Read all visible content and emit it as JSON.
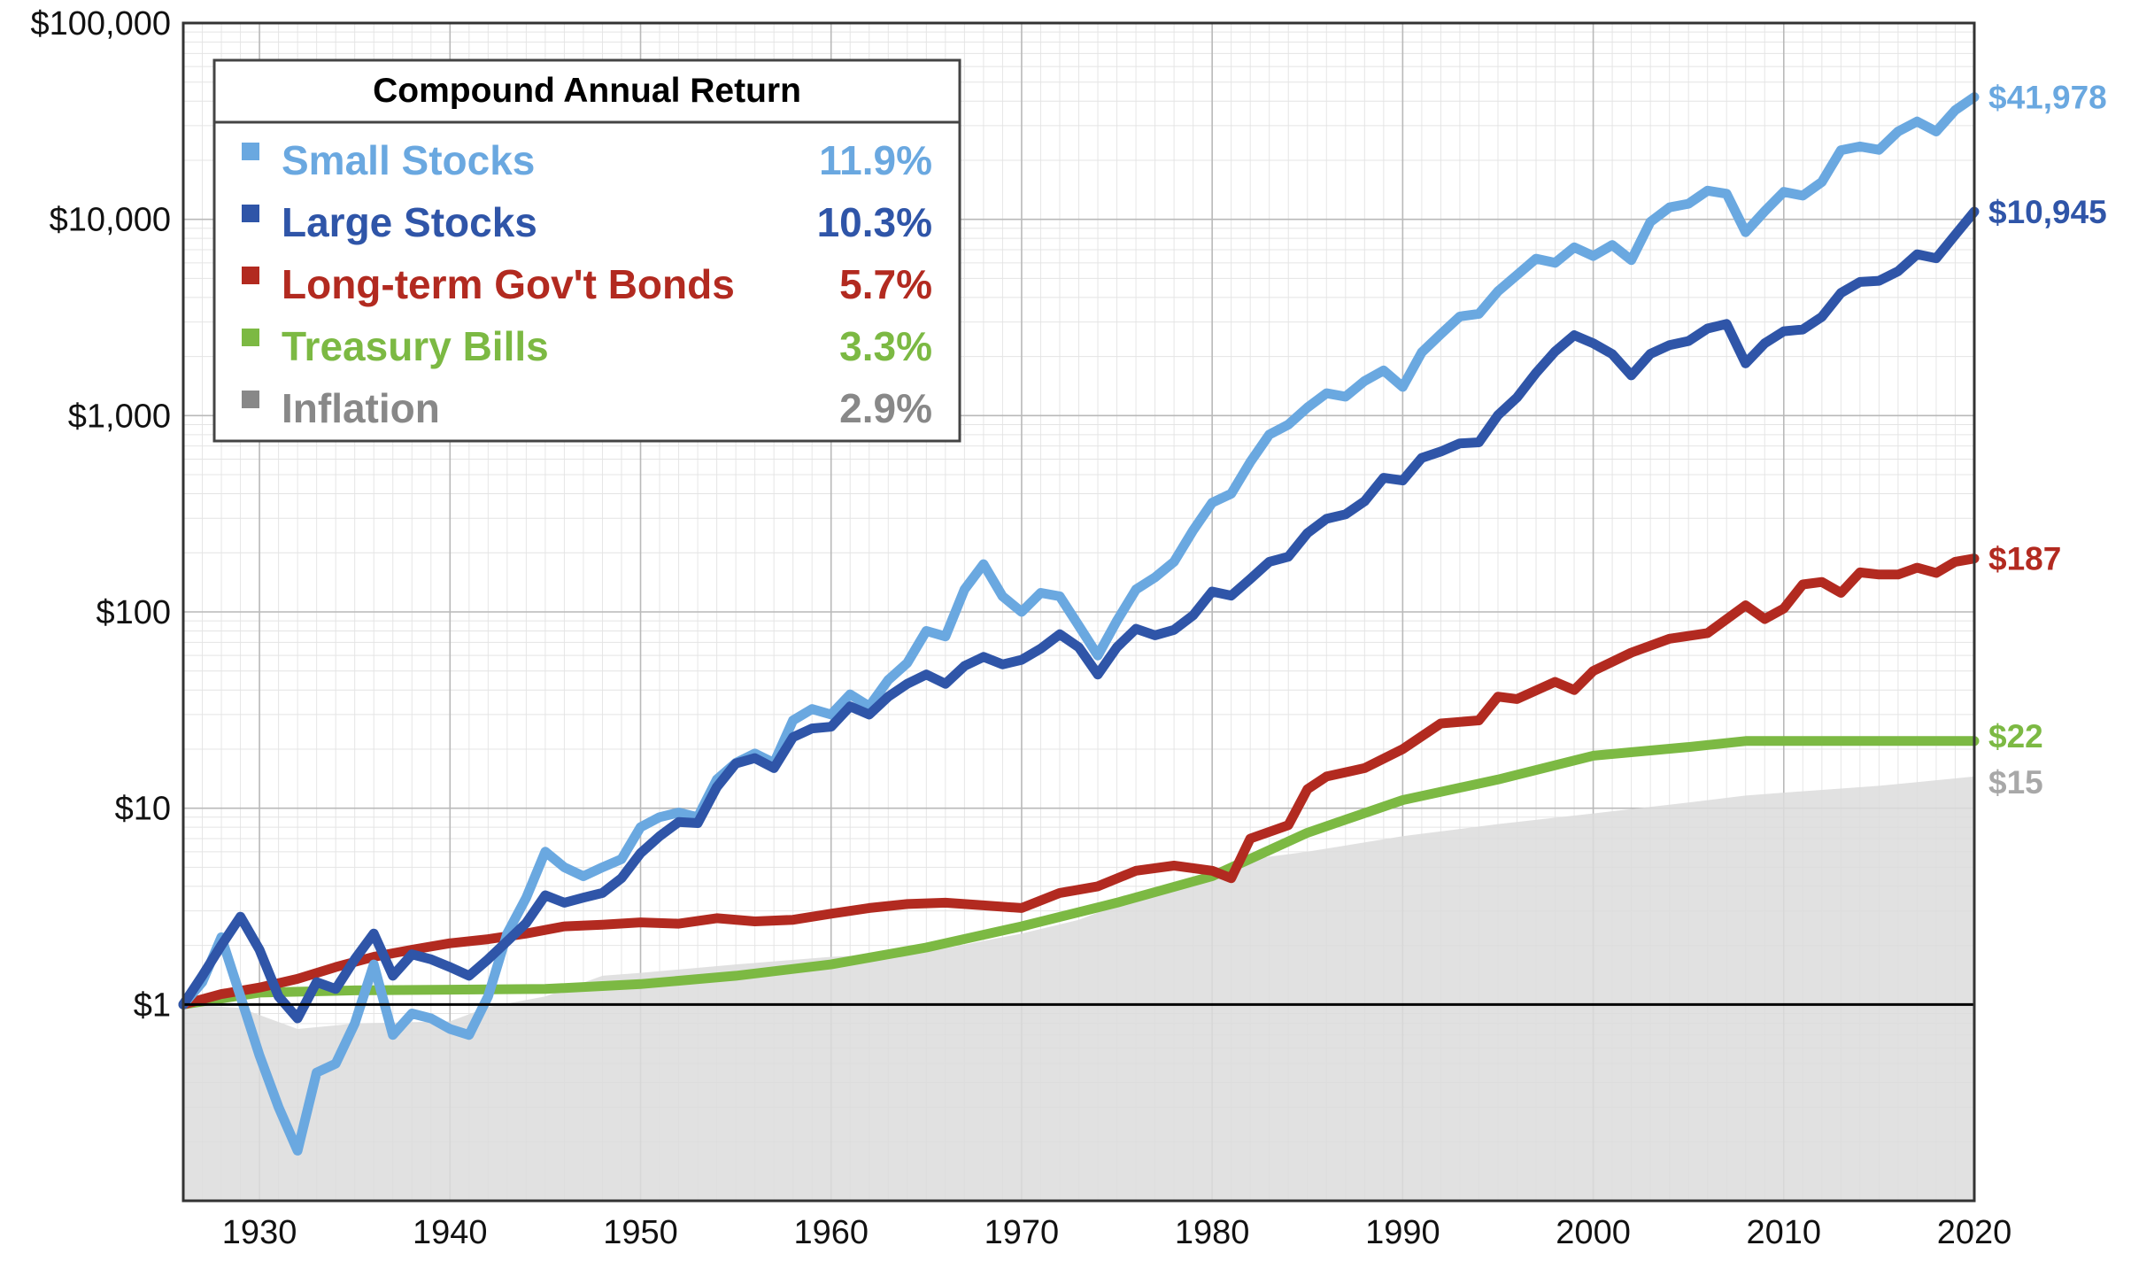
{
  "chart_data": {
    "type": "line",
    "title": "",
    "xlabel": "",
    "ylabel": "",
    "y_scale": "log",
    "xlim": [
      1926,
      2020
    ],
    "ylim": [
      0.1,
      100000
    ],
    "x_ticks": [
      1930,
      1940,
      1950,
      1960,
      1970,
      1980,
      1990,
      2000,
      2010,
      2020
    ],
    "x_tick_labels": [
      "1930",
      "1940",
      "1950",
      "1960",
      "1970",
      "1980",
      "1990",
      "2000",
      "2010",
      "2020"
    ],
    "y_ticks": [
      1,
      10,
      100,
      1000,
      10000,
      100000
    ],
    "y_tick_labels": [
      "$1",
      "$10",
      "$100",
      "$1,000",
      "$10,000",
      "$100,000"
    ],
    "grid": true,
    "legend": {
      "title": "Compound Annual Return",
      "placement": "top-left"
    },
    "series": [
      {
        "name": "Small Stocks",
        "rate": "11.9%",
        "end_label": "$41,978",
        "color": "#6aa8e0",
        "points": [
          [
            1926,
            1
          ],
          [
            1927,
            1.3
          ],
          [
            1928,
            2.2
          ],
          [
            1929,
            1.1
          ],
          [
            1930,
            0.55
          ],
          [
            1931,
            0.3
          ],
          [
            1932,
            0.18
          ],
          [
            1933,
            0.45
          ],
          [
            1934,
            0.5
          ],
          [
            1935,
            0.8
          ],
          [
            1936,
            1.6
          ],
          [
            1937,
            0.7
          ],
          [
            1938,
            0.9
          ],
          [
            1939,
            0.85
          ],
          [
            1940,
            0.75
          ],
          [
            1941,
            0.7
          ],
          [
            1942,
            1.1
          ],
          [
            1943,
            2.3
          ],
          [
            1944,
            3.5
          ],
          [
            1945,
            6
          ],
          [
            1946,
            5
          ],
          [
            1947,
            4.5
          ],
          [
            1948,
            5
          ],
          [
            1949,
            5.5
          ],
          [
            1950,
            8
          ],
          [
            1951,
            9
          ],
          [
            1952,
            9.5
          ],
          [
            1953,
            9
          ],
          [
            1954,
            14
          ],
          [
            1955,
            17
          ],
          [
            1956,
            19
          ],
          [
            1957,
            17
          ],
          [
            1958,
            28
          ],
          [
            1959,
            32
          ],
          [
            1960,
            30
          ],
          [
            1961,
            38
          ],
          [
            1962,
            33
          ],
          [
            1963,
            45
          ],
          [
            1964,
            55
          ],
          [
            1965,
            80
          ],
          [
            1966,
            75
          ],
          [
            1967,
            130
          ],
          [
            1968,
            175
          ],
          [
            1969,
            120
          ],
          [
            1970,
            100
          ],
          [
            1971,
            125
          ],
          [
            1972,
            120
          ],
          [
            1973,
            85
          ],
          [
            1974,
            60
          ],
          [
            1975,
            90
          ],
          [
            1976,
            130
          ],
          [
            1977,
            150
          ],
          [
            1978,
            180
          ],
          [
            1979,
            260
          ],
          [
            1980,
            360
          ],
          [
            1981,
            400
          ],
          [
            1982,
            580
          ],
          [
            1983,
            800
          ],
          [
            1984,
            900
          ],
          [
            1985,
            1100
          ],
          [
            1986,
            1300
          ],
          [
            1987,
            1250
          ],
          [
            1988,
            1500
          ],
          [
            1989,
            1700
          ],
          [
            1990,
            1400
          ],
          [
            1991,
            2100
          ],
          [
            1992,
            2600
          ],
          [
            1993,
            3200
          ],
          [
            1994,
            3300
          ],
          [
            1995,
            4300
          ],
          [
            1996,
            5200
          ],
          [
            1997,
            6300
          ],
          [
            1998,
            6000
          ],
          [
            1999,
            7200
          ],
          [
            2000,
            6500
          ],
          [
            2001,
            7400
          ],
          [
            2002,
            6200
          ],
          [
            2003,
            9700
          ],
          [
            2004,
            11500
          ],
          [
            2005,
            12000
          ],
          [
            2006,
            14000
          ],
          [
            2007,
            13500
          ],
          [
            2008,
            8600
          ],
          [
            2009,
            11000
          ],
          [
            2010,
            13800
          ],
          [
            2011,
            13200
          ],
          [
            2012,
            15500
          ],
          [
            2013,
            22500
          ],
          [
            2014,
            23500
          ],
          [
            2015,
            22600
          ],
          [
            2016,
            28000
          ],
          [
            2017,
            31500
          ],
          [
            2018,
            28000
          ],
          [
            2019,
            36000
          ],
          [
            2020,
            41978
          ]
        ]
      },
      {
        "name": "Large Stocks",
        "rate": "10.3%",
        "end_label": "$10,945",
        "color": "#2f55a8",
        "points": [
          [
            1926,
            1
          ],
          [
            1927,
            1.4
          ],
          [
            1928,
            2
          ],
          [
            1929,
            2.8
          ],
          [
            1930,
            1.9
          ],
          [
            1931,
            1.1
          ],
          [
            1932,
            0.85
          ],
          [
            1933,
            1.3
          ],
          [
            1934,
            1.2
          ],
          [
            1935,
            1.7
          ],
          [
            1936,
            2.3
          ],
          [
            1937,
            1.4
          ],
          [
            1938,
            1.8
          ],
          [
            1939,
            1.7
          ],
          [
            1940,
            1.55
          ],
          [
            1941,
            1.4
          ],
          [
            1942,
            1.7
          ],
          [
            1943,
            2.1
          ],
          [
            1944,
            2.6
          ],
          [
            1945,
            3.6
          ],
          [
            1946,
            3.3
          ],
          [
            1947,
            3.5
          ],
          [
            1948,
            3.7
          ],
          [
            1949,
            4.4
          ],
          [
            1950,
            5.9
          ],
          [
            1951,
            7.2
          ],
          [
            1952,
            8.5
          ],
          [
            1953,
            8.4
          ],
          [
            1954,
            12.8
          ],
          [
            1955,
            16.9
          ],
          [
            1956,
            18
          ],
          [
            1957,
            16
          ],
          [
            1958,
            23
          ],
          [
            1959,
            25.5
          ],
          [
            1960,
            26
          ],
          [
            1961,
            33
          ],
          [
            1962,
            30
          ],
          [
            1963,
            37
          ],
          [
            1964,
            43
          ],
          [
            1965,
            48
          ],
          [
            1966,
            43
          ],
          [
            1967,
            53
          ],
          [
            1968,
            59
          ],
          [
            1969,
            54
          ],
          [
            1970,
            57
          ],
          [
            1971,
            65
          ],
          [
            1972,
            77
          ],
          [
            1973,
            66
          ],
          [
            1974,
            48
          ],
          [
            1975,
            66
          ],
          [
            1976,
            82
          ],
          [
            1977,
            76
          ],
          [
            1978,
            81
          ],
          [
            1979,
            96
          ],
          [
            1980,
            127
          ],
          [
            1981,
            121
          ],
          [
            1982,
            147
          ],
          [
            1983,
            180
          ],
          [
            1984,
            191
          ],
          [
            1985,
            252
          ],
          [
            1986,
            298
          ],
          [
            1987,
            314
          ],
          [
            1988,
            366
          ],
          [
            1989,
            482
          ],
          [
            1990,
            467
          ],
          [
            1991,
            609
          ],
          [
            1992,
            656
          ],
          [
            1993,
            722
          ],
          [
            1994,
            731
          ],
          [
            1995,
            1006
          ],
          [
            1996,
            1237
          ],
          [
            1997,
            1650
          ],
          [
            1998,
            2122
          ],
          [
            1999,
            2569
          ],
          [
            2000,
            2335
          ],
          [
            2001,
            2057
          ],
          [
            2002,
            1603
          ],
          [
            2003,
            2063
          ],
          [
            2004,
            2287
          ],
          [
            2005,
            2400
          ],
          [
            2006,
            2778
          ],
          [
            2007,
            2931
          ],
          [
            2008,
            1847
          ],
          [
            2009,
            2336
          ],
          [
            2010,
            2688
          ],
          [
            2011,
            2745
          ],
          [
            2012,
            3185
          ],
          [
            2013,
            4217
          ],
          [
            2014,
            4794
          ],
          [
            2015,
            4860
          ],
          [
            2016,
            5441
          ],
          [
            2017,
            6629
          ],
          [
            2018,
            6338
          ],
          [
            2019,
            8334
          ],
          [
            2020,
            10945
          ]
        ]
      },
      {
        "name": "Long-term Gov't Bonds",
        "rate": "5.7%",
        "end_label": "$187",
        "color": "#b22a20",
        "points": [
          [
            1926,
            1
          ],
          [
            1928,
            1.13
          ],
          [
            1930,
            1.22
          ],
          [
            1932,
            1.35
          ],
          [
            1934,
            1.55
          ],
          [
            1936,
            1.75
          ],
          [
            1938,
            1.9
          ],
          [
            1940,
            2.05
          ],
          [
            1942,
            2.15
          ],
          [
            1944,
            2.3
          ],
          [
            1946,
            2.5
          ],
          [
            1948,
            2.55
          ],
          [
            1950,
            2.62
          ],
          [
            1952,
            2.58
          ],
          [
            1954,
            2.75
          ],
          [
            1956,
            2.65
          ],
          [
            1958,
            2.7
          ],
          [
            1960,
            2.9
          ],
          [
            1962,
            3.1
          ],
          [
            1964,
            3.25
          ],
          [
            1966,
            3.3
          ],
          [
            1968,
            3.2
          ],
          [
            1970,
            3.1
          ],
          [
            1972,
            3.7
          ],
          [
            1974,
            4
          ],
          [
            1976,
            4.8
          ],
          [
            1978,
            5.1
          ],
          [
            1980,
            4.8
          ],
          [
            1981,
            4.4
          ],
          [
            1982,
            7
          ],
          [
            1984,
            8.2
          ],
          [
            1985,
            12.5
          ],
          [
            1986,
            14.5
          ],
          [
            1988,
            16
          ],
          [
            1990,
            20
          ],
          [
            1992,
            27
          ],
          [
            1994,
            28
          ],
          [
            1995,
            37
          ],
          [
            1996,
            36
          ],
          [
            1998,
            44
          ],
          [
            1999,
            40
          ],
          [
            2000,
            50
          ],
          [
            2002,
            62
          ],
          [
            2004,
            73
          ],
          [
            2006,
            78
          ],
          [
            2008,
            108
          ],
          [
            2009,
            92
          ],
          [
            2010,
            104
          ],
          [
            2011,
            138
          ],
          [
            2012,
            142
          ],
          [
            2013,
            125
          ],
          [
            2014,
            159
          ],
          [
            2015,
            155
          ],
          [
            2016,
            155
          ],
          [
            2017,
            168
          ],
          [
            2018,
            158
          ],
          [
            2019,
            180
          ],
          [
            2020,
            187
          ]
        ]
      },
      {
        "name": "Treasury Bills",
        "rate": "3.3%",
        "end_label": "$22",
        "color": "#7cb943",
        "points": [
          [
            1926,
            1
          ],
          [
            1930,
            1.15
          ],
          [
            1935,
            1.18
          ],
          [
            1940,
            1.19
          ],
          [
            1945,
            1.2
          ],
          [
            1950,
            1.27
          ],
          [
            1955,
            1.4
          ],
          [
            1960,
            1.6
          ],
          [
            1965,
            1.95
          ],
          [
            1970,
            2.5
          ],
          [
            1975,
            3.3
          ],
          [
            1980,
            4.5
          ],
          [
            1985,
            7.5
          ],
          [
            1990,
            11
          ],
          [
            1995,
            14
          ],
          [
            2000,
            18.5
          ],
          [
            2005,
            20.5
          ],
          [
            2008,
            22
          ],
          [
            2010,
            22
          ],
          [
            2015,
            22
          ],
          [
            2020,
            22
          ]
        ]
      },
      {
        "name": "Inflation",
        "rate": "2.9%",
        "end_label": "$15",
        "color": "#a8a8a8",
        "points": [
          [
            1926,
            1
          ],
          [
            1929,
            0.96
          ],
          [
            1932,
            0.75
          ],
          [
            1935,
            0.8
          ],
          [
            1940,
            0.82
          ],
          [
            1942,
            0.97
          ],
          [
            1945,
            1.1
          ],
          [
            1948,
            1.4
          ],
          [
            1950,
            1.45
          ],
          [
            1955,
            1.6
          ],
          [
            1960,
            1.75
          ],
          [
            1965,
            1.85
          ],
          [
            1970,
            2.3
          ],
          [
            1973,
            2.7
          ],
          [
            1975,
            3.2
          ],
          [
            1978,
            3.8
          ],
          [
            1980,
            4.8
          ],
          [
            1982,
            5.5
          ],
          [
            1985,
            6
          ],
          [
            1990,
            7.2
          ],
          [
            1995,
            8.3
          ],
          [
            2000,
            9.4
          ],
          [
            2005,
            10.7
          ],
          [
            2008,
            11.6
          ],
          [
            2010,
            12
          ],
          [
            2015,
            13
          ],
          [
            2020,
            14.5
          ]
        ]
      }
    ]
  }
}
